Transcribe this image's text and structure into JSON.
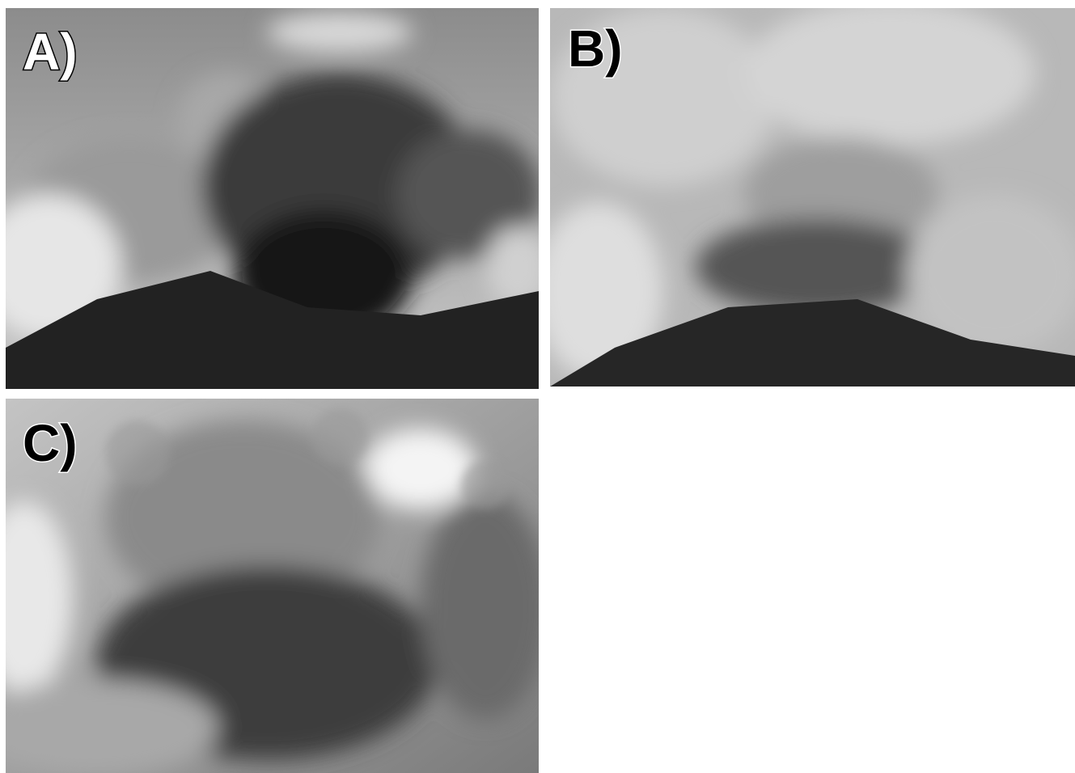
{
  "panels": [
    {
      "label": "A)"
    },
    {
      "label": "B)"
    },
    {
      "label": "C)"
    }
  ]
}
